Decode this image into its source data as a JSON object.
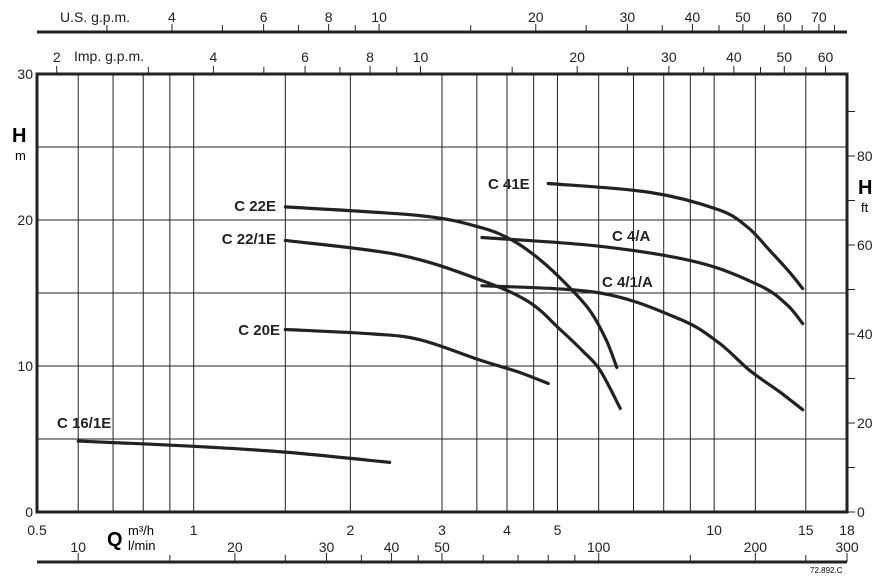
{
  "chart_data": {
    "type": "line",
    "title": "",
    "xlabel": "Q",
    "xunit_primary": "m³/h",
    "xunit_secondary": "l/min",
    "ylabel": "H",
    "yunit_left": "m",
    "yunit_right": "ft",
    "xscale": "log",
    "xlim": [
      0.5,
      18
    ],
    "ylim": [
      0,
      30
    ],
    "grid": true,
    "x_ticks_m3h": [
      "0.5",
      "1",
      "2",
      "3",
      "4",
      "5",
      "10",
      "15",
      "18"
    ],
    "x_grid_m3h": [
      0.6,
      0.7,
      0.8,
      0.9,
      1,
      1.5,
      2,
      3,
      3.5,
      4,
      4.5,
      5,
      6,
      7,
      8,
      9,
      10,
      12,
      15
    ],
    "y_ticks_m": [
      0,
      10,
      20,
      30
    ],
    "y_grid_m": [
      5,
      10,
      15,
      20,
      25
    ],
    "y_ticks_ft": [
      0,
      20,
      40,
      60,
      80
    ],
    "y_minor_ft": [
      10,
      30,
      50,
      70,
      90
    ],
    "us_gpm": {
      "label": "U.S. g.p.m.",
      "ticks": [
        4,
        6,
        8,
        10,
        20,
        30,
        40,
        50,
        60,
        70
      ],
      "minor": [
        3,
        5,
        7,
        9,
        15,
        25,
        35,
        45,
        55,
        65,
        75
      ]
    },
    "imp_gpm": {
      "label": "Imp. g.p.m.",
      "ticks": [
        2,
        4,
        6,
        8,
        10,
        20,
        30,
        40,
        50,
        60
      ],
      "minor": [
        3,
        5,
        7,
        9,
        15,
        25,
        35,
        45,
        55
      ]
    },
    "lmin": {
      "ticks": [
        10,
        20,
        30,
        40,
        50,
        100,
        200,
        300
      ],
      "minor": [
        15,
        25,
        35,
        45,
        60,
        70,
        80,
        90,
        150,
        250
      ]
    },
    "series": [
      {
        "name": "C 16/1E",
        "points": [
          [
            0.6,
            4.86
          ],
          [
            1.0,
            4.5
          ],
          [
            1.5,
            4.1
          ],
          [
            2.38,
            3.4
          ]
        ]
      },
      {
        "name": "C 20E",
        "points": [
          [
            1.5,
            12.5
          ],
          [
            2.2,
            12.2
          ],
          [
            2.72,
            11.8
          ],
          [
            3.55,
            10.4
          ],
          [
            4.2,
            9.6
          ],
          [
            4.8,
            8.8
          ]
        ]
      },
      {
        "name": "C 22/1E",
        "points": [
          [
            1.5,
            18.6
          ],
          [
            2.49,
            17.6
          ],
          [
            3.55,
            15.9
          ],
          [
            4.4,
            14.4
          ],
          [
            5.06,
            12.5
          ],
          [
            5.6,
            11.0
          ],
          [
            6.04,
            9.7
          ],
          [
            6.6,
            7.1
          ]
        ]
      },
      {
        "name": "C 22E",
        "points": [
          [
            1.5,
            20.9
          ],
          [
            2.72,
            20.3
          ],
          [
            3.55,
            19.5
          ],
          [
            4.1,
            18.6
          ],
          [
            4.62,
            17.3
          ],
          [
            5.2,
            15.6
          ],
          [
            5.77,
            13.8
          ],
          [
            6.2,
            11.8
          ],
          [
            6.5,
            9.9
          ]
        ]
      },
      {
        "name": "C 4/A",
        "points": [
          [
            3.58,
            18.8
          ],
          [
            6.04,
            18.2
          ],
          [
            9.3,
            17.1
          ],
          [
            12.25,
            15.5
          ],
          [
            13.8,
            14.2
          ],
          [
            14.8,
            12.9
          ]
        ]
      },
      {
        "name": "C 4/1/A",
        "points": [
          [
            3.58,
            15.5
          ],
          [
            6.04,
            15.0
          ],
          [
            8.6,
            13.2
          ],
          [
            10.2,
            11.6
          ],
          [
            11.7,
            9.7
          ],
          [
            13.4,
            8.2
          ],
          [
            14.8,
            7.0
          ]
        ]
      },
      {
        "name": "C 41E",
        "points": [
          [
            4.8,
            22.5
          ],
          [
            7.5,
            21.9
          ],
          [
            10.2,
            20.7
          ],
          [
            11.6,
            19.5
          ],
          [
            12.8,
            17.9
          ],
          [
            13.9,
            16.5
          ],
          [
            14.8,
            15.3
          ]
        ]
      }
    ],
    "series_labels": [
      "C 16/1E",
      "C 20E",
      "C 22/1E",
      "C 22E",
      "C 4/A",
      "C 4/1/A",
      "C 41E"
    ],
    "footnote": "72.892.C"
  }
}
